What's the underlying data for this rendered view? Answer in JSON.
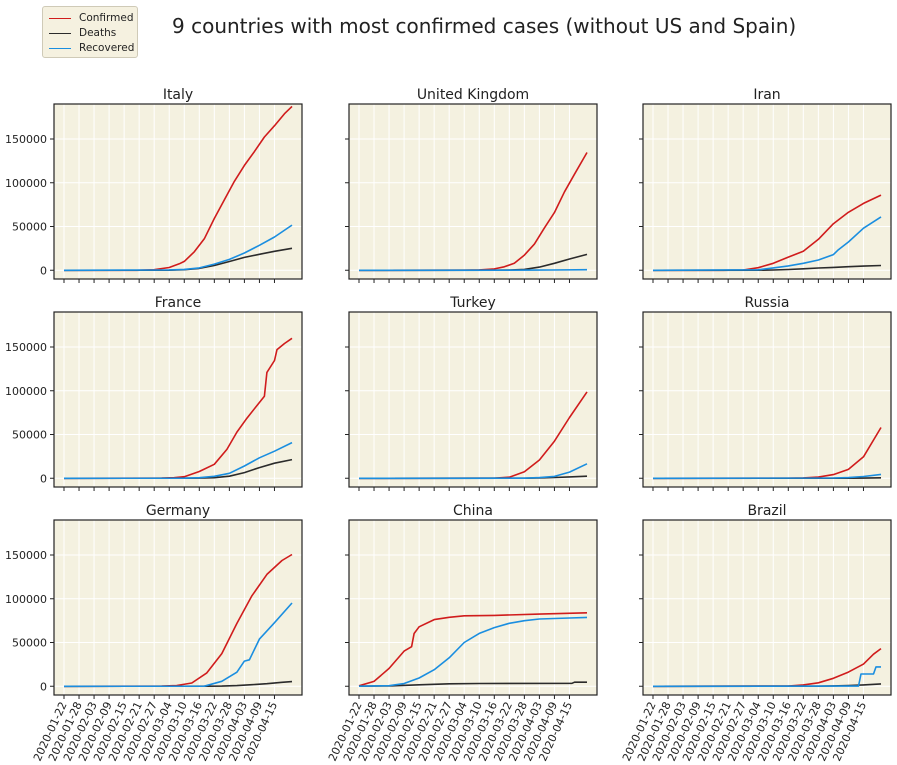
{
  "figure": {
    "suptitle": "9 countries with most confirmed cases (without US and Spain)"
  },
  "legend": {
    "entries": [
      {
        "label": "Confirmed",
        "color": "#d01c1c"
      },
      {
        "label": "Deaths",
        "color": "#2b2b2b"
      },
      {
        "label": "Recovered",
        "color": "#1a8ee0"
      }
    ]
  },
  "style": {
    "panel_background": "#f4f1e0",
    "grid_color": "#ffffff",
    "frame_color": "#222222"
  },
  "chart_data": {
    "type": "line",
    "layout": "3x3 grid, shared y axis per row, shared x axis per column",
    "ylim": [
      -10000,
      190000
    ],
    "yticks": [
      0,
      50000,
      100000,
      150000
    ],
    "x_start": "2020-01-22",
    "x_end": "2020-04-22",
    "xticks": [
      "2020-01-22",
      "2020-01-28",
      "2020-02-03",
      "2020-02-09",
      "2020-02-15",
      "2020-02-21",
      "2020-02-27",
      "2020-03-04",
      "2020-03-10",
      "2020-03-16",
      "2020-03-22",
      "2020-03-28",
      "2020-04-03",
      "2020-04-09",
      "2020-04-15"
    ],
    "grid": true,
    "legend_location": "upper-left of figure",
    "panels": [
      {
        "title": "Italy",
        "series": [
          {
            "name": "Confirmed",
            "x": [
              "2020-01-22",
              "2020-02-20",
              "2020-02-27",
              "2020-03-04",
              "2020-03-08",
              "2020-03-10",
              "2020-03-14",
              "2020-03-18",
              "2020-03-22",
              "2020-03-26",
              "2020-03-30",
              "2020-04-03",
              "2020-04-07",
              "2020-04-11",
              "2020-04-15",
              "2020-04-19",
              "2020-04-22"
            ],
            "y": [
              0,
              0,
              650,
              3100,
              7400,
              10100,
              21100,
              36000,
              59100,
              80600,
              101700,
              119800,
              135600,
              152300,
              165200,
              178900,
              187300
            ]
          },
          {
            "name": "Deaths",
            "x": [
              "2020-01-22",
              "2020-03-04",
              "2020-03-10",
              "2020-03-16",
              "2020-03-22",
              "2020-03-28",
              "2020-04-03",
              "2020-04-09",
              "2020-04-15",
              "2020-04-22"
            ],
            "y": [
              0,
              110,
              630,
              2160,
              5480,
              10020,
              14680,
              18280,
              21650,
              25080
            ]
          },
          {
            "name": "Recovered",
            "x": [
              "2020-01-22",
              "2020-03-04",
              "2020-03-10",
              "2020-03-16",
              "2020-03-22",
              "2020-03-28",
              "2020-04-03",
              "2020-04-09",
              "2020-04-15",
              "2020-04-22"
            ],
            "y": [
              0,
              400,
              1000,
              2700,
              7000,
              12400,
              19700,
              28500,
              38000,
              51600
            ]
          }
        ]
      },
      {
        "title": "United Kingdom",
        "series": [
          {
            "name": "Confirmed",
            "x": [
              "2020-01-22",
              "2020-03-04",
              "2020-03-10",
              "2020-03-16",
              "2020-03-20",
              "2020-03-24",
              "2020-03-28",
              "2020-04-01",
              "2020-04-05",
              "2020-04-09",
              "2020-04-13",
              "2020-04-17",
              "2020-04-22"
            ],
            "y": [
              0,
              85,
              380,
              1550,
              4000,
              8100,
              17300,
              29900,
              48400,
              65900,
              89600,
              109800,
              134600
            ]
          },
          {
            "name": "Deaths",
            "x": [
              "2020-01-22",
              "2020-03-16",
              "2020-03-22",
              "2020-03-28",
              "2020-04-03",
              "2020-04-09",
              "2020-04-15",
              "2020-04-22"
            ],
            "y": [
              0,
              55,
              280,
              1020,
              3610,
              7980,
              12900,
              18100
            ]
          },
          {
            "name": "Recovered",
            "x": [
              "2020-01-22",
              "2020-03-20",
              "2020-04-01",
              "2020-04-08",
              "2020-04-22"
            ],
            "y": [
              0,
              60,
              180,
              340,
              640
            ]
          }
        ]
      },
      {
        "title": "Iran",
        "series": [
          {
            "name": "Confirmed",
            "x": [
              "2020-01-22",
              "2020-02-19",
              "2020-02-27",
              "2020-03-04",
              "2020-03-10",
              "2020-03-16",
              "2020-03-22",
              "2020-03-28",
              "2020-04-03",
              "2020-04-09",
              "2020-04-15",
              "2020-04-22"
            ],
            "y": [
              0,
              0,
              250,
              2900,
              8000,
              15000,
              21600,
              35400,
              53200,
              66200,
              76400,
              85900
            ]
          },
          {
            "name": "Deaths",
            "x": [
              "2020-01-22",
              "2020-03-04",
              "2020-03-10",
              "2020-03-16",
              "2020-03-22",
              "2020-03-28",
              "2020-04-03",
              "2020-04-09",
              "2020-04-15",
              "2020-04-22"
            ],
            "y": [
              0,
              80,
              290,
              850,
              1690,
              2520,
              3290,
              4110,
              4780,
              5390
            ]
          },
          {
            "name": "Recovered",
            "x": [
              "2020-01-22",
              "2020-03-04",
              "2020-03-10",
              "2020-03-16",
              "2020-03-22",
              "2020-03-28",
              "2020-04-03",
              "2020-04-05",
              "2020-04-09",
              "2020-04-15",
              "2020-04-22"
            ],
            "y": [
              0,
              550,
              2700,
              5000,
              7900,
              11700,
              17900,
              23500,
              32300,
              48100,
              61000
            ]
          }
        ]
      },
      {
        "title": "France",
        "series": [
          {
            "name": "Confirmed",
            "x": [
              "2020-01-22",
              "2020-03-01",
              "2020-03-06",
              "2020-03-10",
              "2020-03-16",
              "2020-03-22",
              "2020-03-27",
              "2020-03-31",
              "2020-04-04",
              "2020-04-08",
              "2020-04-11",
              "2020-04-12",
              "2020-04-15",
              "2020-04-16",
              "2020-04-19",
              "2020-04-22"
            ],
            "y": [
              0,
              130,
              650,
              1800,
              7700,
              16000,
              33000,
              52800,
              68600,
              83000,
              93800,
              121000,
              134600,
              147000,
              154000,
              159900
            ]
          },
          {
            "name": "Deaths",
            "x": [
              "2020-01-22",
              "2020-03-10",
              "2020-03-16",
              "2020-03-22",
              "2020-03-28",
              "2020-04-03",
              "2020-04-09",
              "2020-04-15",
              "2020-04-22"
            ],
            "y": [
              0,
              30,
              150,
              670,
              2310,
              6510,
              12200,
              17200,
              21340
            ]
          },
          {
            "name": "Recovered",
            "x": [
              "2020-01-22",
              "2020-03-10",
              "2020-03-16",
              "2020-03-22",
              "2020-03-28",
              "2020-04-03",
              "2020-04-09",
              "2020-04-15",
              "2020-04-22"
            ],
            "y": [
              0,
              20,
              600,
              2200,
              5700,
              14000,
              23400,
              30900,
              40700
            ]
          }
        ]
      },
      {
        "title": "Turkey",
        "series": [
          {
            "name": "Confirmed",
            "x": [
              "2020-01-22",
              "2020-03-11",
              "2020-03-16",
              "2020-03-22",
              "2020-03-28",
              "2020-04-03",
              "2020-04-09",
              "2020-04-15",
              "2020-04-22"
            ],
            "y": [
              0,
              1,
              47,
              1240,
              7400,
              20900,
              42300,
              69400,
              98700
            ]
          },
          {
            "name": "Deaths",
            "x": [
              "2020-01-22",
              "2020-03-22",
              "2020-03-28",
              "2020-04-03",
              "2020-04-09",
              "2020-04-15",
              "2020-04-22"
            ],
            "y": [
              0,
              30,
              110,
              430,
              910,
              1520,
              2370
            ]
          },
          {
            "name": "Recovered",
            "x": [
              "2020-01-22",
              "2020-03-28",
              "2020-04-03",
              "2020-04-09",
              "2020-04-15",
              "2020-04-22"
            ],
            "y": [
              0,
              100,
              800,
              2100,
              7000,
              16500
            ]
          }
        ]
      },
      {
        "title": "Russia",
        "series": [
          {
            "name": "Confirmed",
            "x": [
              "2020-01-22",
              "2020-03-16",
              "2020-03-22",
              "2020-03-28",
              "2020-04-03",
              "2020-04-09",
              "2020-04-15",
              "2020-04-22"
            ],
            "y": [
              0,
              63,
              367,
              1264,
              4149,
              10131,
              24490,
              57999
            ]
          },
          {
            "name": "Deaths",
            "x": [
              "2020-01-22",
              "2020-04-03",
              "2020-04-09",
              "2020-04-15",
              "2020-04-22"
            ],
            "y": [
              0,
              34,
              76,
              198,
              513
            ]
          },
          {
            "name": "Recovered",
            "x": [
              "2020-01-22",
              "2020-04-03",
              "2020-04-09",
              "2020-04-15",
              "2020-04-22"
            ],
            "y": [
              0,
              281,
              698,
              1986,
              4420
            ]
          }
        ]
      },
      {
        "title": "Germany",
        "series": [
          {
            "name": "Confirmed",
            "x": [
              "2020-01-22",
              "2020-03-01",
              "2020-03-07",
              "2020-03-13",
              "2020-03-19",
              "2020-03-25",
              "2020-03-31",
              "2020-04-06",
              "2020-04-12",
              "2020-04-18",
              "2020-04-22"
            ],
            "y": [
              0,
              130,
              800,
              3700,
              15300,
              37300,
              71800,
              103400,
              127800,
              143700,
              150600
            ]
          },
          {
            "name": "Deaths",
            "x": [
              "2020-01-22",
              "2020-03-19",
              "2020-03-25",
              "2020-03-31",
              "2020-04-06",
              "2020-04-12",
              "2020-04-18",
              "2020-04-22"
            ],
            "y": [
              0,
              40,
              210,
              780,
              1810,
              2870,
              4460,
              5280
            ]
          },
          {
            "name": "Recovered",
            "x": [
              "2020-01-22",
              "2020-03-18",
              "2020-03-25",
              "2020-03-31",
              "2020-04-03",
              "2020-04-05",
              "2020-04-09",
              "2020-04-15",
              "2020-04-22"
            ],
            "y": [
              0,
              100,
              5700,
              16100,
              28700,
              30200,
              53900,
              72600,
              95200
            ]
          }
        ]
      },
      {
        "title": "China",
        "series": [
          {
            "name": "Confirmed",
            "x": [
              "2020-01-22",
              "2020-01-28",
              "2020-02-03",
              "2020-02-09",
              "2020-02-12",
              "2020-02-13",
              "2020-02-15",
              "2020-02-21",
              "2020-02-27",
              "2020-03-04",
              "2020-03-16",
              "2020-04-03",
              "2020-04-22"
            ],
            "y": [
              548,
              5500,
              20400,
              40200,
              45200,
              60300,
              68000,
              76200,
              78800,
              80500,
              81000,
              82500,
              83900
            ]
          },
          {
            "name": "Deaths",
            "x": [
              "2020-01-22",
              "2020-02-03",
              "2020-02-15",
              "2020-02-27",
              "2020-03-10",
              "2020-04-16",
              "2020-04-17",
              "2020-04-22"
            ],
            "y": [
              17,
              430,
              1660,
              2790,
              3140,
              3340,
              4630,
              4640
            ]
          },
          {
            "name": "Recovered",
            "x": [
              "2020-01-22",
              "2020-02-03",
              "2020-02-09",
              "2020-02-15",
              "2020-02-21",
              "2020-02-27",
              "2020-03-04",
              "2020-03-10",
              "2020-03-16",
              "2020-03-22",
              "2020-03-28",
              "2020-04-03",
              "2020-04-15",
              "2020-04-22"
            ],
            "y": [
              28,
              600,
              3200,
              9400,
              18900,
              32500,
              50000,
              60400,
              67000,
              71900,
              74900,
              76800,
              78000,
              78700
            ]
          }
        ]
      },
      {
        "title": "Brazil",
        "series": [
          {
            "name": "Confirmed",
            "x": [
              "2020-01-22",
              "2020-03-16",
              "2020-03-22",
              "2020-03-28",
              "2020-04-03",
              "2020-04-09",
              "2020-04-15",
              "2020-04-19",
              "2020-04-22"
            ],
            "y": [
              0,
              230,
              1590,
              3900,
              9050,
              16200,
              25300,
              36600,
              43000
            ]
          },
          {
            "name": "Deaths",
            "x": [
              "2020-01-22",
              "2020-03-22",
              "2020-03-28",
              "2020-04-03",
              "2020-04-09",
              "2020-04-15",
              "2020-04-22"
            ],
            "y": [
              0,
              25,
              110,
              360,
              820,
              1550,
              2740
            ]
          },
          {
            "name": "Recovered",
            "x": [
              "2020-01-22",
              "2020-04-09",
              "2020-04-13",
              "2020-04-14",
              "2020-04-19",
              "2020-04-20",
              "2020-04-22"
            ],
            "y": [
              0,
              130,
              170,
              14000,
              14000,
              22100,
              22100
            ]
          }
        ]
      }
    ]
  }
}
